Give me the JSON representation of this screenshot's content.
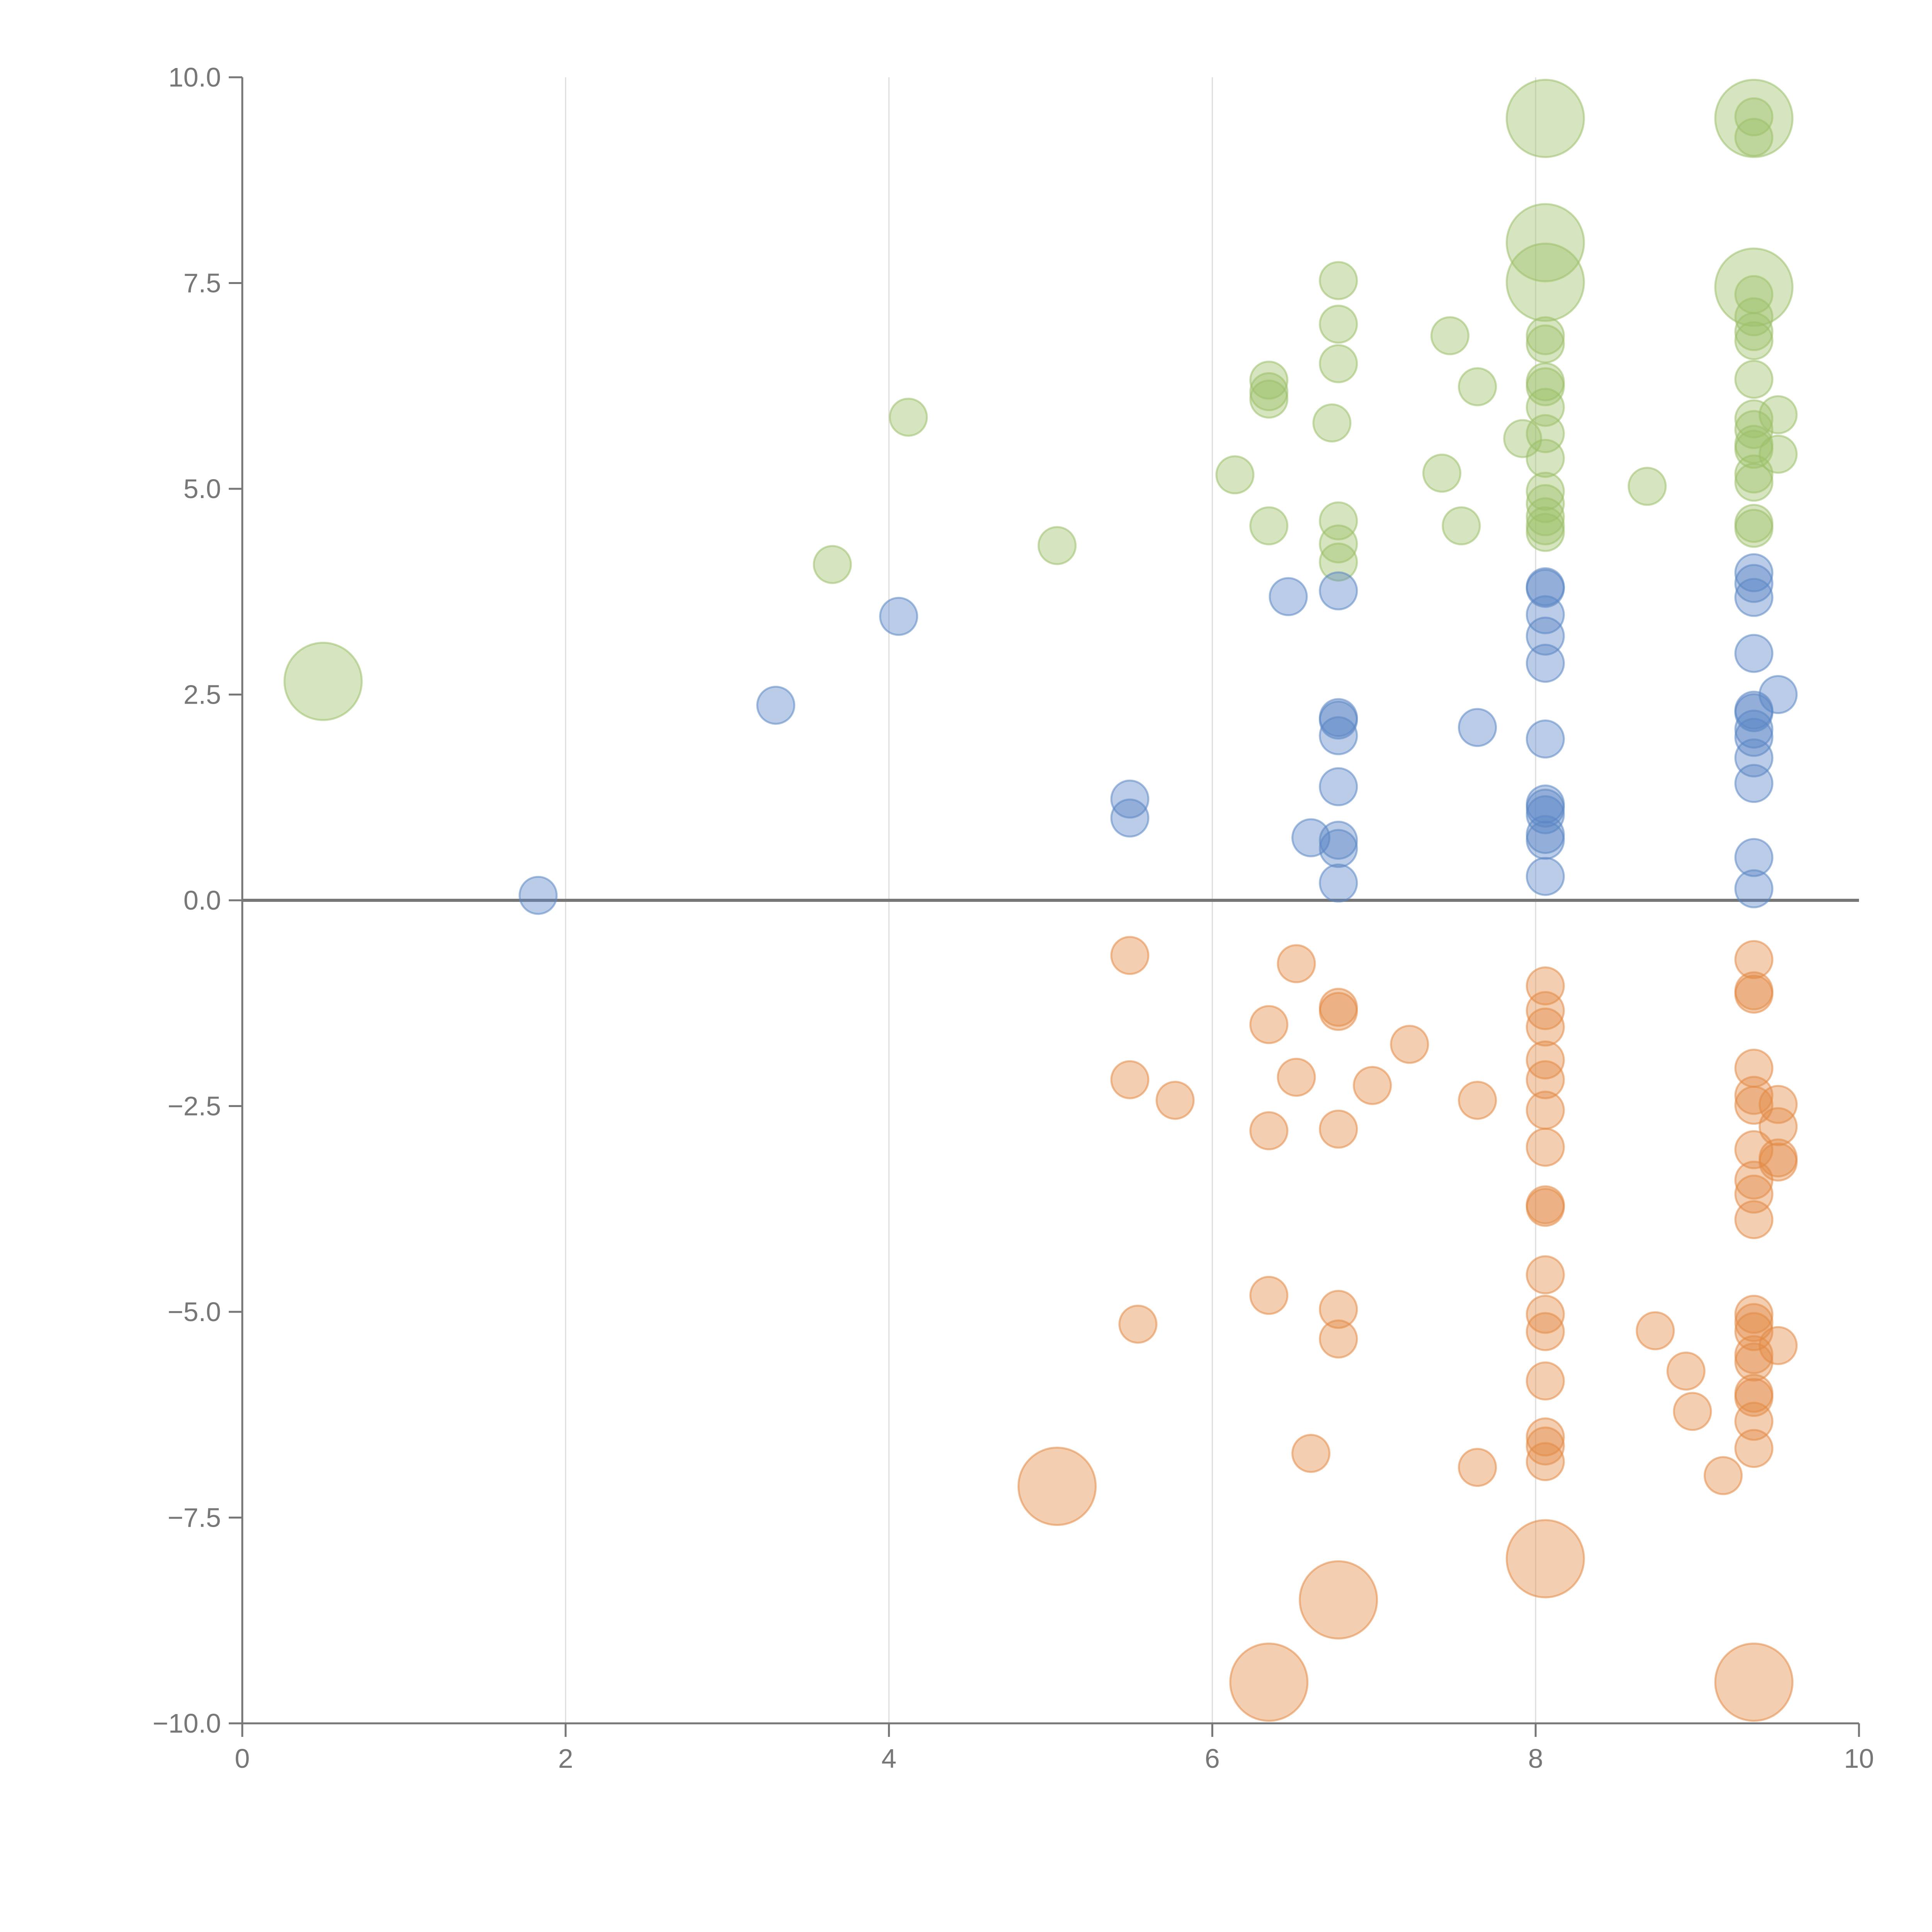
{
  "chart_data": {
    "type": "scatter",
    "title": "",
    "xlabel": "",
    "ylabel": "",
    "xlim": [
      0,
      10
    ],
    "ylim": [
      -10,
      10
    ],
    "x_ticks": [
      0,
      2,
      4,
      6,
      8,
      10
    ],
    "x_tick_labels": [
      "0",
      "2",
      "4",
      "6",
      "8",
      "10"
    ],
    "y_ticks": [
      -10,
      -7.5,
      -5,
      -2.5,
      0,
      2.5,
      5,
      7.5,
      10
    ],
    "y_tick_labels": [
      "−10.0",
      "−7.5",
      "−5.0",
      "−2.5",
      "0.0",
      "2.5",
      "5.0",
      "7.5",
      "10.0"
    ],
    "vertical_grid": [
      2,
      4,
      6,
      8
    ],
    "zero_line": 0,
    "colors": {
      "green": "#9dc06a",
      "blue": "#5b86c5",
      "orange": "#e38a45"
    },
    "series": [
      {
        "name": "green",
        "color": "#9dc06a",
        "points": [
          [
            3.65,
            4.08
          ],
          [
            4.12,
            5.87
          ],
          [
            5.04,
            4.31
          ],
          [
            6.14,
            5.17
          ],
          [
            6.35,
            6.32
          ],
          [
            6.35,
            6.18
          ],
          [
            6.35,
            6.09
          ],
          [
            6.35,
            4.55
          ],
          [
            6.74,
            5.8
          ],
          [
            6.78,
            7.53
          ],
          [
            6.78,
            7.0
          ],
          [
            6.78,
            6.52
          ],
          [
            6.78,
            4.61
          ],
          [
            6.78,
            4.33
          ],
          [
            6.78,
            4.11
          ],
          [
            7.42,
            5.19
          ],
          [
            7.47,
            6.86
          ],
          [
            7.54,
            4.55
          ],
          [
            7.64,
            6.24
          ],
          [
            7.92,
            5.61
          ],
          [
            8.06,
            6.86
          ],
          [
            8.06,
            6.76
          ],
          [
            8.06,
            6.3
          ],
          [
            8.06,
            6.24
          ],
          [
            8.06,
            5.99
          ],
          [
            8.06,
            5.67
          ],
          [
            8.06,
            5.37
          ],
          [
            8.06,
            4.97
          ],
          [
            8.06,
            4.82
          ],
          [
            8.06,
            4.66
          ],
          [
            8.06,
            4.55
          ],
          [
            8.06,
            4.47
          ],
          [
            8.69,
            5.03
          ],
          [
            9.35,
            9.52
          ],
          [
            9.35,
            9.27
          ],
          [
            9.35,
            7.36
          ],
          [
            9.35,
            7.09
          ],
          [
            9.35,
            6.91
          ],
          [
            9.35,
            6.8
          ],
          [
            9.35,
            6.33
          ],
          [
            9.35,
            5.85
          ],
          [
            9.35,
            5.72
          ],
          [
            9.35,
            5.54
          ],
          [
            9.35,
            5.48
          ],
          [
            9.35,
            5.18
          ],
          [
            9.35,
            5.08
          ],
          [
            9.35,
            4.58
          ],
          [
            9.35,
            4.52
          ],
          [
            9.5,
            5.9
          ],
          [
            9.5,
            5.42
          ]
        ],
        "large_points": [
          [
            0.5,
            2.66
          ],
          [
            8.06,
            9.5
          ],
          [
            8.06,
            7.99
          ],
          [
            8.06,
            7.51
          ],
          [
            9.35,
            9.5
          ],
          [
            9.35,
            7.45
          ]
        ]
      },
      {
        "name": "blue",
        "color": "#5b86c5",
        "points": [
          [
            1.83,
            0.06
          ],
          [
            3.3,
            2.37
          ],
          [
            4.06,
            3.45
          ],
          [
            5.49,
            1.23
          ],
          [
            5.49,
            1.0
          ],
          [
            6.47,
            3.69
          ],
          [
            6.61,
            0.76
          ],
          [
            6.78,
            3.76
          ],
          [
            6.78,
            2.22
          ],
          [
            6.78,
            2.19
          ],
          [
            6.78,
            2.0
          ],
          [
            6.78,
            1.38
          ],
          [
            6.78,
            0.73
          ],
          [
            6.78,
            0.63
          ],
          [
            6.78,
            0.21
          ],
          [
            7.64,
            2.1
          ],
          [
            8.06,
            3.81
          ],
          [
            8.06,
            3.79
          ],
          [
            8.06,
            3.47
          ],
          [
            8.06,
            3.21
          ],
          [
            8.06,
            2.88
          ],
          [
            8.06,
            1.96
          ],
          [
            8.06,
            1.17
          ],
          [
            8.06,
            1.12
          ],
          [
            8.06,
            1.04
          ],
          [
            8.06,
            0.8
          ],
          [
            8.06,
            0.73
          ],
          [
            8.06,
            0.29
          ],
          [
            9.35,
            3.98
          ],
          [
            9.35,
            3.85
          ],
          [
            9.35,
            3.68
          ],
          [
            9.35,
            3.0
          ],
          [
            9.35,
            2.31
          ],
          [
            9.35,
            2.28
          ],
          [
            9.35,
            2.08
          ],
          [
            9.35,
            1.98
          ],
          [
            9.35,
            1.73
          ],
          [
            9.35,
            1.42
          ],
          [
            9.35,
            0.52
          ],
          [
            9.35,
            0.14
          ],
          [
            9.5,
            2.5
          ]
        ],
        "large_points": []
      },
      {
        "name": "orange",
        "color": "#e38a45",
        "points": [
          [
            5.49,
            -0.67
          ],
          [
            5.49,
            -2.18
          ],
          [
            5.54,
            -5.15
          ],
          [
            5.77,
            -2.43
          ],
          [
            6.35,
            -1.51
          ],
          [
            6.35,
            -2.8
          ],
          [
            6.35,
            -4.8
          ],
          [
            6.52,
            -0.77
          ],
          [
            6.52,
            -2.15
          ],
          [
            6.61,
            -6.72
          ],
          [
            6.78,
            -1.3
          ],
          [
            6.78,
            -1.35
          ],
          [
            6.78,
            -2.78
          ],
          [
            6.78,
            -4.97
          ],
          [
            6.78,
            -5.33
          ],
          [
            6.99,
            -2.25
          ],
          [
            7.22,
            -1.75
          ],
          [
            7.64,
            -2.43
          ],
          [
            7.64,
            -6.89
          ],
          [
            8.06,
            -1.04
          ],
          [
            8.06,
            -1.34
          ],
          [
            8.06,
            -1.54
          ],
          [
            8.06,
            -1.94
          ],
          [
            8.06,
            -2.18
          ],
          [
            8.06,
            -2.55
          ],
          [
            8.06,
            -3.0
          ],
          [
            8.06,
            -3.7
          ],
          [
            8.06,
            -3.73
          ],
          [
            8.06,
            -4.55
          ],
          [
            8.06,
            -5.03
          ],
          [
            8.06,
            -5.24
          ],
          [
            8.06,
            -5.84
          ],
          [
            8.06,
            -6.52
          ],
          [
            8.06,
            -6.63
          ],
          [
            8.06,
            -6.82
          ],
          [
            8.74,
            -5.23
          ],
          [
            8.93,
            -5.72
          ],
          [
            8.97,
            -6.21
          ],
          [
            9.16,
            -6.99
          ],
          [
            9.35,
            -0.72
          ],
          [
            9.35,
            -1.1
          ],
          [
            9.35,
            -1.14
          ],
          [
            9.35,
            -2.04
          ],
          [
            9.35,
            -2.37
          ],
          [
            9.35,
            -2.49
          ],
          [
            9.35,
            -3.03
          ],
          [
            9.35,
            -3.4
          ],
          [
            9.35,
            -3.57
          ],
          [
            9.35,
            -3.88
          ],
          [
            9.35,
            -5.03
          ],
          [
            9.35,
            -5.13
          ],
          [
            9.35,
            -5.24
          ],
          [
            9.35,
            -5.52
          ],
          [
            9.35,
            -5.61
          ],
          [
            9.35,
            -5.99
          ],
          [
            9.35,
            -6.04
          ],
          [
            9.35,
            -6.33
          ],
          [
            9.35,
            -6.66
          ],
          [
            9.5,
            -2.48
          ],
          [
            9.5,
            -2.75
          ],
          [
            9.5,
            -3.13
          ],
          [
            9.5,
            -3.18
          ],
          [
            9.5,
            -5.41
          ]
        ],
        "large_points": [
          [
            5.04,
            -7.12
          ],
          [
            6.35,
            -9.5
          ],
          [
            6.78,
            -8.5
          ],
          [
            8.06,
            -8.0
          ],
          [
            9.35,
            -9.5
          ]
        ]
      }
    ]
  }
}
